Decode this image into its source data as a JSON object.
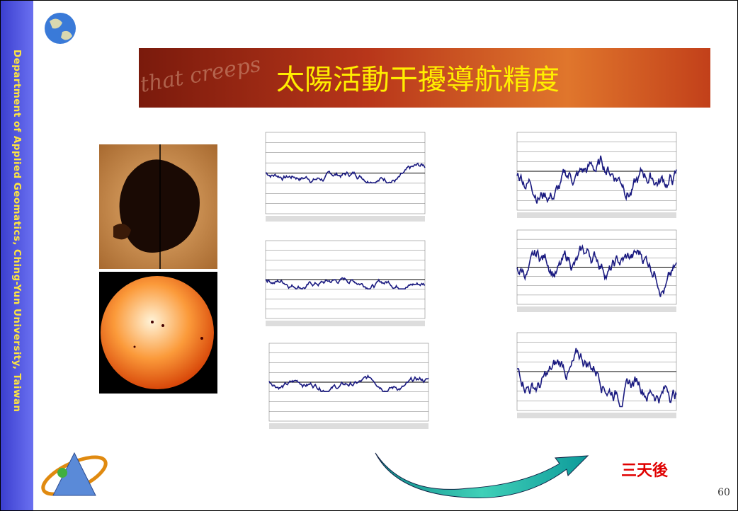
{
  "sidebar": {
    "text": "Department of Applied Geomatics, Ching-Yun University, Taiwan"
  },
  "banner": {
    "title": "太陽活動干擾導航精度",
    "background_text": "that creeps"
  },
  "caption": "三天後",
  "page_number": "60"
}
